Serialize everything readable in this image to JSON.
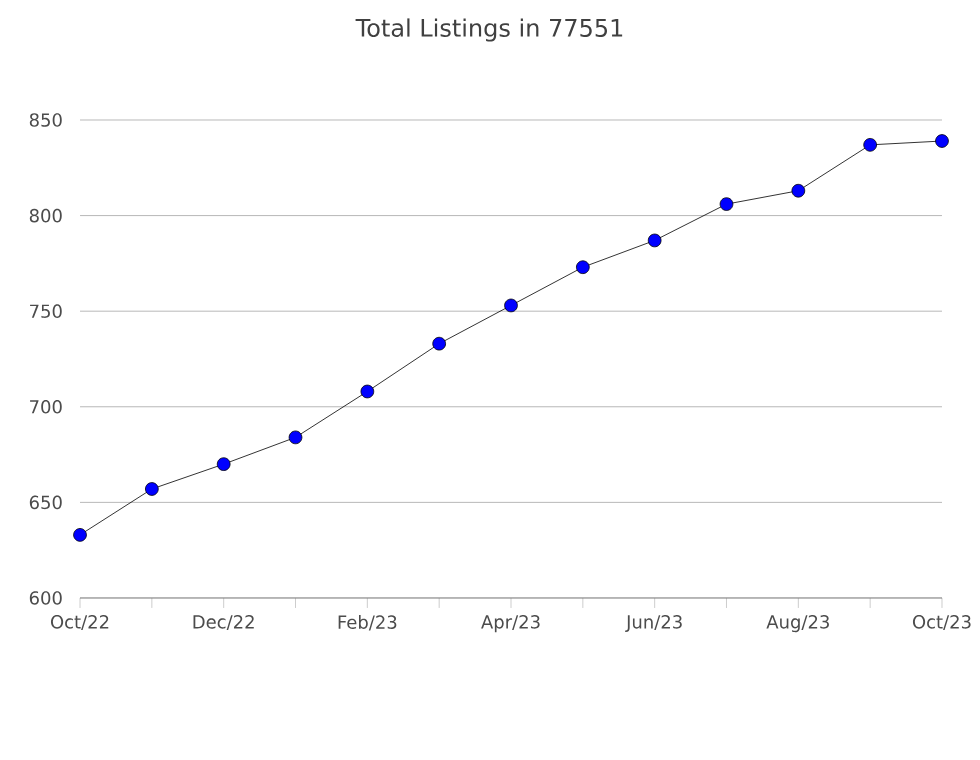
{
  "chart_data": {
    "type": "line",
    "title": "Total Listings in 77551",
    "categories": [
      "Oct/22",
      null,
      "Dec/22",
      null,
      "Feb/23",
      null,
      "Apr/23",
      null,
      "Jun/23",
      null,
      "Aug/23",
      null,
      "Oct/23"
    ],
    "series": [
      {
        "color": "#000000",
        "values": [
          633,
          657,
          670,
          684,
          708,
          733,
          753,
          773,
          787,
          806,
          813,
          837,
          839
        ]
      }
    ],
    "ylim": [
      600,
      850
    ],
    "yticks": [
      600,
      650,
      700,
      750,
      800,
      850
    ],
    "grid": "y",
    "marker": "circle",
    "line_style": "solid"
  }
}
